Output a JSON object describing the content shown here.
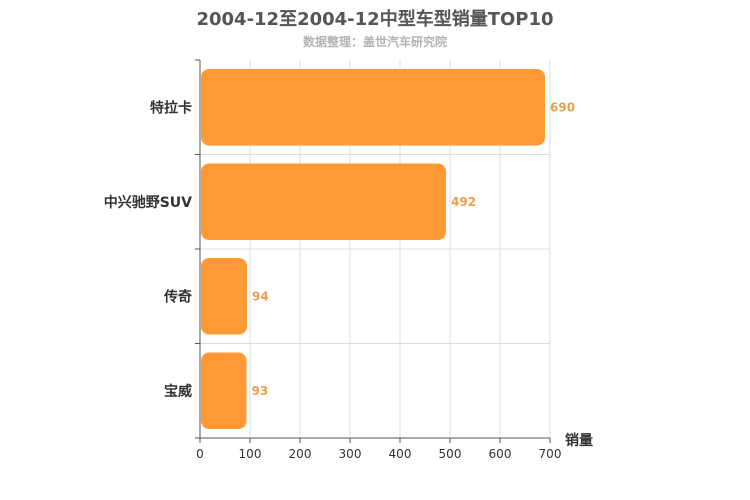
{
  "chart_data": {
    "type": "bar",
    "orientation": "horizontal",
    "title": "2004-12至2004-12中型车型销量TOP10",
    "subtitle": "数据整理：盖世汽车研究院",
    "xlabel": "销量",
    "ylabel": "",
    "categories": [
      "特拉卡",
      "中兴驰野SUV",
      "传奇",
      "宝威"
    ],
    "values": [
      690,
      492,
      94,
      93
    ],
    "xlim": [
      0,
      700
    ],
    "xticks": [
      0,
      100,
      200,
      300,
      400,
      500,
      600,
      700
    ],
    "grid": true,
    "bar_color": "#ff9933",
    "label_color": "#e8a04a"
  }
}
